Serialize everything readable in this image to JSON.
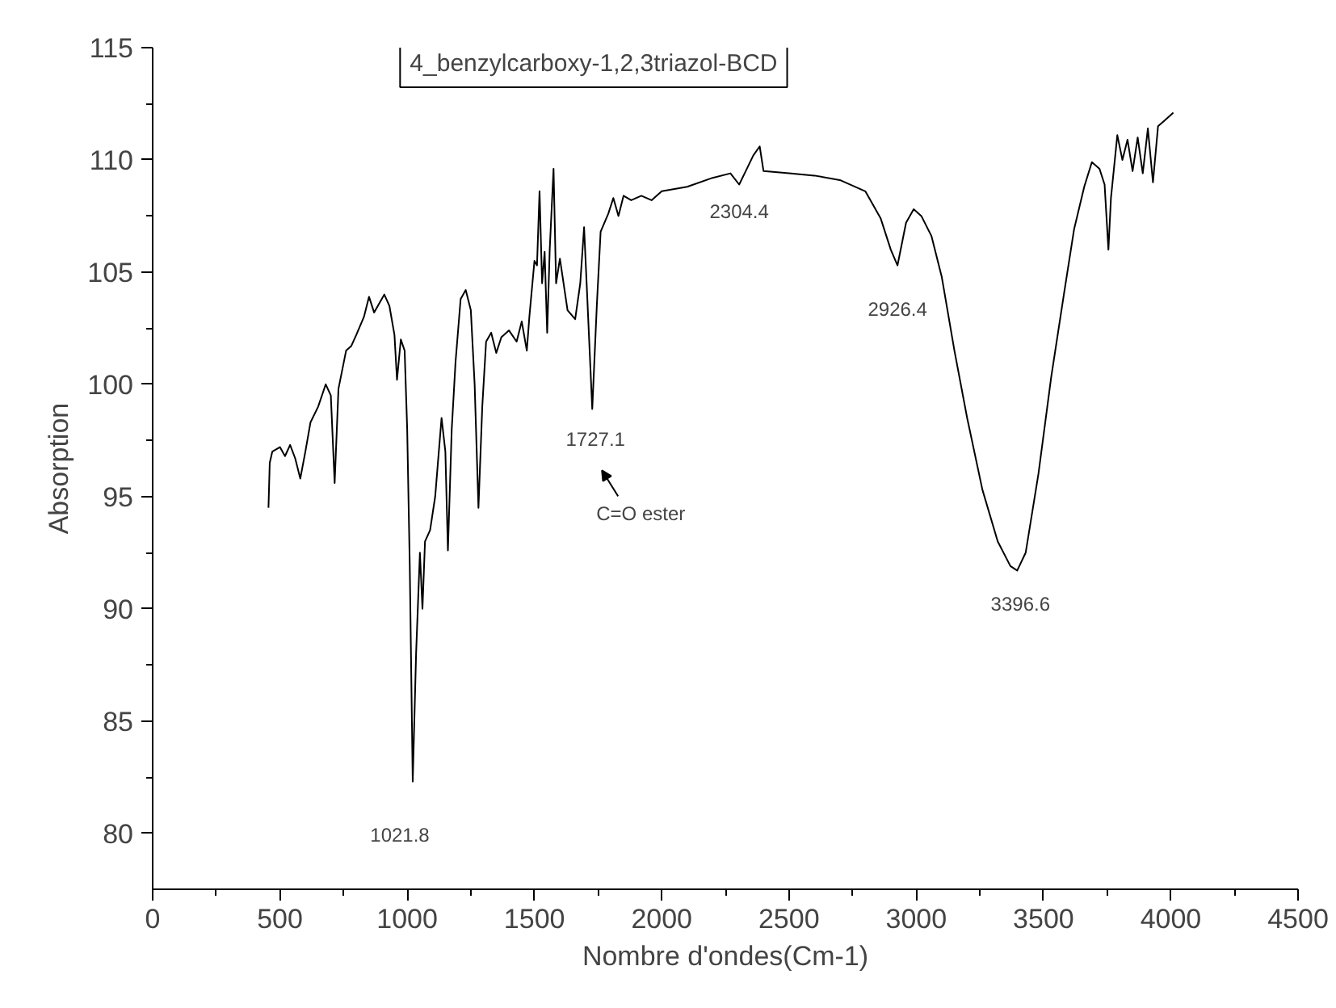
{
  "chart_data": {
    "type": "line",
    "title": "4_benzylcarboxy-1,2,3triazol-BCD",
    "xlabel": "Nombre d'ondes(Cm-1)",
    "ylabel": "Absorption",
    "xlim": [
      0,
      4500
    ],
    "ylim": [
      77.5,
      115
    ],
    "xticks": [
      0,
      500,
      1000,
      1500,
      2000,
      2500,
      3000,
      3500,
      4000,
      4500
    ],
    "yticks": [
      80,
      85,
      90,
      95,
      100,
      105,
      110,
      115
    ],
    "grid": false,
    "series": [
      {
        "color": "#000000",
        "x": [
          455,
          460,
          470,
          500,
          520,
          540,
          560,
          580,
          600,
          620,
          650,
          680,
          700,
          715,
          730,
          760,
          780,
          800,
          830,
          850,
          870,
          890,
          910,
          930,
          950,
          960,
          975,
          990,
          1000,
          1010,
          1021.8,
          1035,
          1050,
          1060,
          1070,
          1090,
          1110,
          1135,
          1150,
          1160,
          1175,
          1190,
          1210,
          1230,
          1250,
          1265,
          1280,
          1295,
          1310,
          1330,
          1350,
          1370,
          1400,
          1430,
          1450,
          1470,
          1480,
          1500,
          1510,
          1520,
          1530,
          1540,
          1550,
          1560,
          1575,
          1585,
          1600,
          1630,
          1660,
          1680,
          1695,
          1705,
          1727.1,
          1745,
          1760,
          1790,
          1810,
          1830,
          1850,
          1880,
          1920,
          1960,
          2000,
          2100,
          2200,
          2270,
          2304.4,
          2330,
          2360,
          2385,
          2400,
          2500,
          2600,
          2700,
          2800,
          2860,
          2900,
          2926.4,
          2960,
          2990,
          3020,
          3060,
          3100,
          3150,
          3200,
          3260,
          3320,
          3370,
          3396.6,
          3430,
          3480,
          3530,
          3580,
          3620,
          3660,
          3690,
          3720,
          3740,
          3755,
          3765,
          3790,
          3810,
          3830,
          3850,
          3870,
          3890,
          3910,
          3930,
          3950,
          3980,
          4010
        ],
        "values": [
          94.5,
          96.5,
          97.0,
          97.2,
          96.8,
          97.3,
          96.7,
          95.8,
          97.0,
          98.3,
          99.0,
          100.0,
          99.5,
          95.6,
          99.8,
          101.5,
          101.7,
          102.2,
          103.0,
          103.9,
          103.2,
          103.6,
          104.0,
          103.5,
          102.2,
          100.2,
          102.0,
          101.5,
          98,
          92,
          82.3,
          88,
          92.5,
          90,
          93,
          93.5,
          95,
          98.5,
          97,
          92.6,
          98,
          101,
          103.8,
          104.2,
          103.3,
          100,
          94.5,
          99,
          101.9,
          102.3,
          101.4,
          102.1,
          102.4,
          101.9,
          102.8,
          101.5,
          103,
          105.5,
          105.3,
          108.6,
          104.5,
          105.9,
          102.3,
          106.0,
          109.6,
          104.5,
          105.6,
          103.3,
          102.9,
          104.5,
          107.0,
          104.5,
          98.9,
          103.5,
          106.8,
          107.6,
          108.3,
          107.5,
          108.4,
          108.2,
          108.4,
          108.2,
          108.6,
          108.8,
          109.2,
          109.4,
          108.9,
          109.5,
          110.2,
          110.6,
          109.5,
          109.4,
          109.3,
          109.1,
          108.6,
          107.4,
          106.0,
          105.3,
          107.2,
          107.8,
          107.5,
          106.6,
          104.8,
          101.5,
          98.5,
          95.3,
          93.0,
          91.9,
          91.7,
          92.5,
          96,
          100.3,
          104,
          106.9,
          108.8,
          109.9,
          109.6,
          108.9,
          106.0,
          108.3,
          111.1,
          110.0,
          110.9,
          109.5,
          111.0,
          109.4,
          111.4,
          109.0,
          111.5,
          111.8,
          112.1
        ]
      }
    ],
    "annotations": [
      {
        "text": "1021.8",
        "x": 1021.8,
        "y": 82.3
      },
      {
        "text": "1727.1",
        "x": 1727.1,
        "y": 98.9
      },
      "C=O ester",
      {
        "text": "2304.4",
        "x": 2304.4,
        "y": 108.9
      },
      {
        "text": "2926.4",
        "x": 2926.4,
        "y": 105.3
      },
      {
        "text": "3396.6",
        "x": 3396.6,
        "y": 91.7
      }
    ]
  }
}
